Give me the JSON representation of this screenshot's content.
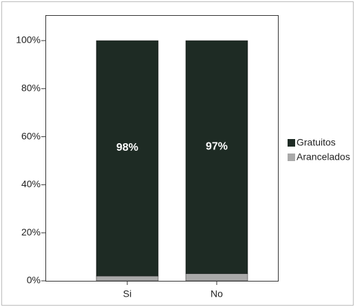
{
  "chart_data": {
    "type": "stacked_bar",
    "categories": [
      "Si",
      "No"
    ],
    "series": [
      {
        "name": "Gratuitos",
        "color": "#1e2b24",
        "values": [
          98,
          97
        ],
        "value_labels": [
          "98%",
          "97%"
        ]
      },
      {
        "name": "Arancelados",
        "color": "#a9a9a9",
        "values": [
          2,
          3
        ]
      }
    ],
    "ylim": [
      0,
      100
    ],
    "yticks": [
      {
        "value": 0,
        "label": "0%"
      },
      {
        "value": 20,
        "label": "20%"
      },
      {
        "value": 40,
        "label": "40%"
      },
      {
        "value": 60,
        "label": "60%"
      },
      {
        "value": 80,
        "label": "80%"
      },
      {
        "value": 100,
        "label": "100%"
      }
    ],
    "legend": "right"
  }
}
